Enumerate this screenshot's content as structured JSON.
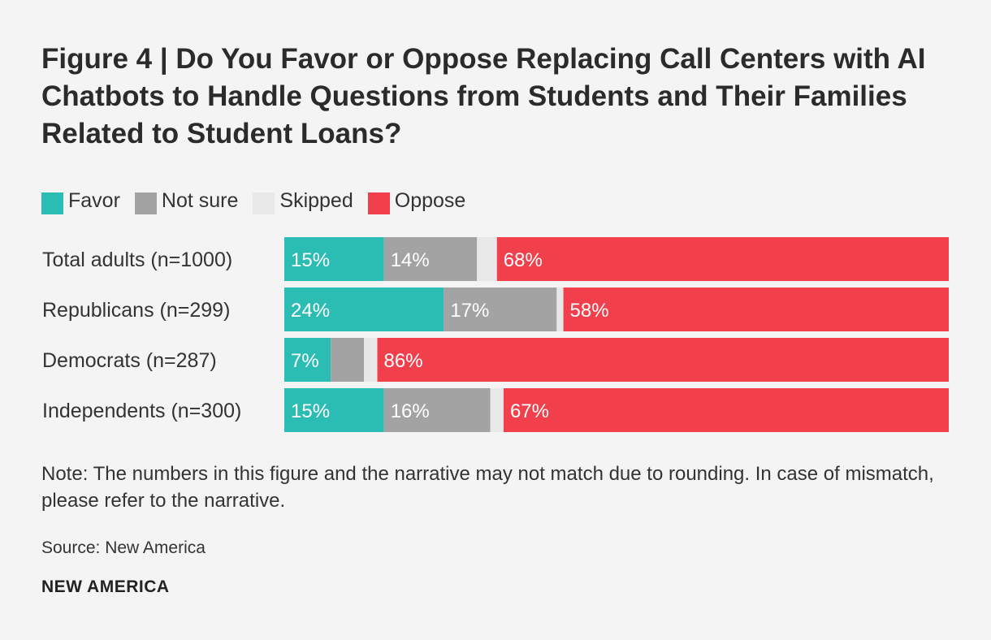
{
  "chart_data": {
    "type": "bar",
    "orientation": "horizontal",
    "stacked": true,
    "title": "Figure 4 | Do You Favor or Oppose Replacing Call Centers with AI Chatbots to Handle Questions from Students and Their Families Related to Student Loans?",
    "categories": [
      "Total adults (n=1000)",
      "Republicans (n=299)",
      "Democrats (n=287)",
      "Independents (n=300)"
    ],
    "series": [
      {
        "name": "Favor",
        "color": "#2bbcb3",
        "values": [
          15,
          24,
          7,
          15
        ],
        "labels": [
          "15%",
          "24%",
          "7%",
          "15%"
        ]
      },
      {
        "name": "Not sure",
        "color": "#a3a3a3",
        "values": [
          14,
          17,
          5,
          16
        ],
        "labels": [
          "14%",
          "17%",
          "",
          "16%"
        ]
      },
      {
        "name": "Skipped",
        "color": "#e8e8e8",
        "values": [
          3,
          1,
          2,
          2
        ],
        "labels": [
          "",
          "",
          "",
          ""
        ]
      },
      {
        "name": "Oppose",
        "color": "#f23f4c",
        "values": [
          68,
          58,
          86,
          67
        ],
        "labels": [
          "68%",
          "58%",
          "86%",
          "67%"
        ]
      }
    ],
    "xlim": [
      0,
      100
    ],
    "legend_position": "top-left",
    "grid": false
  },
  "note": "Note: The numbers in this figure and the narrative may not match due to rounding. In case of mismatch, please refer to the narrative.",
  "source": "Source: New America",
  "brand": "NEW AMERICA"
}
